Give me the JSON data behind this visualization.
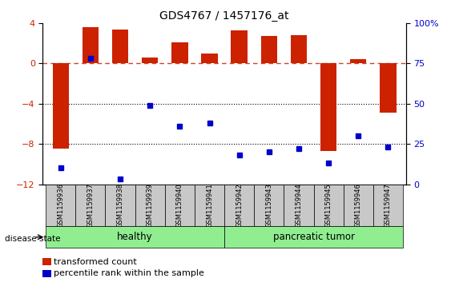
{
  "title": "GDS4767 / 1457176_at",
  "samples": [
    "GSM1159936",
    "GSM1159937",
    "GSM1159938",
    "GSM1159939",
    "GSM1159940",
    "GSM1159941",
    "GSM1159942",
    "GSM1159943",
    "GSM1159944",
    "GSM1159945",
    "GSM1159946",
    "GSM1159947"
  ],
  "transformed_count": [
    -8.5,
    3.6,
    3.4,
    0.6,
    2.1,
    1.0,
    3.3,
    2.7,
    2.8,
    -8.7,
    0.4,
    -4.9
  ],
  "percentile_rank_pct": [
    10,
    78,
    3,
    49,
    36,
    38,
    18,
    20,
    22,
    13,
    30,
    23
  ],
  "healthy_indices": [
    0,
    1,
    2,
    3,
    4,
    5
  ],
  "tumor_indices": [
    6,
    7,
    8,
    9,
    10,
    11
  ],
  "bar_color": "#CC2200",
  "dot_color": "#0000CC",
  "ylim_left": [
    -12,
    4
  ],
  "ylim_right": [
    0,
    100
  ],
  "yticks_left": [
    4,
    0,
    -4,
    -8,
    -12
  ],
  "yticks_right": [
    100,
    75,
    50,
    25,
    0
  ],
  "dotted_lines": [
    -4,
    -8
  ],
  "group_bg_color": "#c8c8c8",
  "group_healthy_color": "#90EE90",
  "group_tumor_color": "#90EE90",
  "legend_red_label": "transformed count",
  "legend_blue_label": "percentile rank within the sample",
  "disease_state_label": "disease state"
}
